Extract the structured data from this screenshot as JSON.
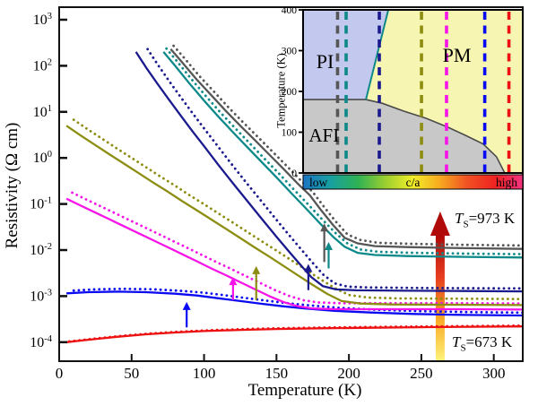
{
  "colors": {
    "background": "#ffffff",
    "axis": "#111111",
    "pi_fill": "#c3c9ee",
    "pm_fill": "#f6f6b2",
    "afi_fill": "#c8c8c8",
    "afi_boundary": "#4a4a4a",
    "pi_pm_boundary": "#0e8989",
    "gradient_arrow_stops": [
      "#fdf279",
      "#f9a825",
      "#e63c1e",
      "#ae0909"
    ]
  },
  "labels": {
    "ylabel": "Resistivity (Ω cm)",
    "xlabel": "Temperature (K)",
    "inset_ylabel": "Temperature (K)"
  },
  "annotations": {
    "high": {
      "symbol": "T",
      "sub": "S",
      "rest": "=973 K"
    },
    "low": {
      "symbol": "T",
      "sub": "S",
      "rest": "=673 K"
    }
  },
  "chart_data": {
    "type": "line",
    "title": "",
    "xlabel": "Temperature (K)",
    "ylabel": "Resistivity (Ω cm)",
    "xlim": [
      0,
      320
    ],
    "x_ticks": [
      0,
      50,
      100,
      150,
      200,
      250,
      300
    ],
    "y_scale": "log",
    "y_tick_exponents": [
      3,
      2,
      1,
      0,
      -1,
      -2,
      -3,
      -4
    ],
    "ylim_log": [
      -4.4,
      3.27
    ],
    "grid": false,
    "legend": "none",
    "note": "Each sample has a solid curve and a dotted twin slightly shifted (dT in K, factor in rho). Transition arrows mark metal-insulator transition temperatures.",
    "series": [
      {
        "name": "red-highest-ca",
        "color": "#ee1111",
        "dotted_dT": 2,
        "dotted_factor": 1.04,
        "arrow_T": null,
        "points": [
          [
            5,
            0.0001
          ],
          [
            20,
            0.000113
          ],
          [
            40,
            0.000131
          ],
          [
            60,
            0.000148
          ],
          [
            80,
            0.000162
          ],
          [
            100,
            0.000174
          ],
          [
            125,
            0.000185
          ],
          [
            150,
            0.000193
          ],
          [
            180,
            0.0002
          ],
          [
            215,
            0.000206
          ],
          [
            255,
            0.000212
          ],
          [
            320,
            0.00022
          ]
        ]
      },
      {
        "name": "blue-sample",
        "color": "#0a0af2",
        "dotted_dT": 5,
        "dotted_factor": 1.15,
        "arrow_T": 88,
        "arrow_rho": [
          0.00021,
          0.00075
        ],
        "points": [
          [
            5,
            0.00115
          ],
          [
            20,
            0.00122
          ],
          [
            40,
            0.00125
          ],
          [
            60,
            0.00122
          ],
          [
            80,
            0.00113
          ],
          [
            95,
            0.00103
          ],
          [
            110,
            0.0009
          ],
          [
            125,
            0.00078
          ],
          [
            140,
            0.00068
          ],
          [
            155,
            0.0006
          ],
          [
            170,
            0.00054
          ],
          [
            190,
            0.00048
          ],
          [
            215,
            0.00044
          ],
          [
            245,
            0.00041
          ],
          [
            280,
            0.00039
          ],
          [
            320,
            0.00038
          ]
        ]
      },
      {
        "name": "magenta-sample",
        "color": "#f714e8",
        "dotted_dT": 4,
        "dotted_factor": 1.35,
        "arrow_T": 120,
        "arrow_rho": [
          0.00082,
          0.0026
        ],
        "points": [
          [
            5,
            0.13
          ],
          [
            15,
            0.092
          ],
          [
            25,
            0.065
          ],
          [
            35,
            0.046
          ],
          [
            45,
            0.0325
          ],
          [
            55,
            0.023
          ],
          [
            65,
            0.0163
          ],
          [
            75,
            0.0115
          ],
          [
            85,
            0.0081
          ],
          [
            95,
            0.0057
          ],
          [
            105,
            0.004
          ],
          [
            115,
            0.00285
          ],
          [
            125,
            0.002
          ],
          [
            135,
            0.00142
          ],
          [
            145,
            0.001
          ],
          [
            155,
            0.00074
          ],
          [
            165,
            0.0006
          ],
          [
            175,
            0.00054
          ],
          [
            190,
            0.00052
          ],
          [
            220,
            0.00052
          ],
          [
            270,
            0.00052
          ],
          [
            320,
            0.00051
          ]
        ]
      },
      {
        "name": "olive-sample",
        "color": "#8d8d12",
        "dotted_dT": 5,
        "dotted_factor": 1.35,
        "arrow_T": 136,
        "arrow_rho": [
          0.00082,
          0.0045
        ],
        "points": [
          [
            5,
            5.0
          ],
          [
            15,
            3.05
          ],
          [
            25,
            1.9
          ],
          [
            35,
            1.18
          ],
          [
            45,
            0.74
          ],
          [
            55,
            0.465
          ],
          [
            65,
            0.29
          ],
          [
            75,
            0.185
          ],
          [
            85,
            0.115
          ],
          [
            95,
            0.073
          ],
          [
            105,
            0.046
          ],
          [
            115,
            0.029
          ],
          [
            125,
            0.0182
          ],
          [
            135,
            0.0114
          ],
          [
            145,
            0.0072
          ],
          [
            155,
            0.0045
          ],
          [
            165,
            0.0028
          ],
          [
            175,
            0.00175
          ],
          [
            185,
            0.00112
          ],
          [
            195,
            0.00078
          ],
          [
            208,
            0.00069
          ],
          [
            230,
            0.00066
          ],
          [
            275,
            0.00065
          ],
          [
            320,
            0.00064
          ]
        ]
      },
      {
        "name": "navy-sample",
        "color": "#1a1a8e",
        "dotted_dT": 8,
        "dotted_factor": 1.15,
        "arrow_T": 172,
        "arrow_rho": [
          0.00135,
          0.005
        ],
        "points": [
          [
            53,
            200
          ],
          [
            60,
            92
          ],
          [
            68,
            40
          ],
          [
            76,
            18
          ],
          [
            84,
            8.2
          ],
          [
            92,
            3.8
          ],
          [
            100,
            1.8
          ],
          [
            110,
            0.7
          ],
          [
            120,
            0.28
          ],
          [
            130,
            0.115
          ],
          [
            140,
            0.047
          ],
          [
            150,
            0.0195
          ],
          [
            158,
            0.0098
          ],
          [
            166,
            0.005
          ],
          [
            174,
            0.0026
          ],
          [
            182,
            0.00165
          ],
          [
            191,
            0.0014
          ],
          [
            205,
            0.00134
          ],
          [
            240,
            0.00131
          ],
          [
            280,
            0.00129
          ],
          [
            320,
            0.00127
          ]
        ]
      },
      {
        "name": "teal-sample",
        "color": "#0e8989",
        "dotted_dT": 2,
        "dotted_factor": 1.18,
        "arrow_T": 186,
        "arrow_rho": [
          0.004,
          0.015
        ],
        "points": [
          [
            72,
            200
          ],
          [
            80,
            100
          ],
          [
            90,
            41
          ],
          [
            100,
            17.5
          ],
          [
            110,
            7.8
          ],
          [
            120,
            3.6
          ],
          [
            130,
            1.7
          ],
          [
            140,
            0.8
          ],
          [
            150,
            0.38
          ],
          [
            160,
            0.175
          ],
          [
            170,
            0.082
          ],
          [
            180,
            0.038
          ],
          [
            189,
            0.0195
          ],
          [
            197,
            0.0118
          ],
          [
            206,
            0.0087
          ],
          [
            218,
            0.0078
          ],
          [
            240,
            0.0074
          ],
          [
            280,
            0.0071
          ],
          [
            320,
            0.0069
          ]
        ]
      },
      {
        "name": "gray-lowest-ca",
        "color": "#565656",
        "dotted_dT": 2,
        "dotted_factor": 1.18,
        "arrow_T": 183,
        "arrow_rho": [
          0.0055,
          0.038
        ],
        "points": [
          [
            77,
            230
          ],
          [
            85,
            118
          ],
          [
            95,
            50
          ],
          [
            105,
            23
          ],
          [
            115,
            10.5
          ],
          [
            125,
            5.0
          ],
          [
            135,
            2.45
          ],
          [
            145,
            1.18
          ],
          [
            155,
            0.57
          ],
          [
            165,
            0.27
          ],
          [
            173,
            0.155
          ],
          [
            181,
            0.072
          ],
          [
            189,
            0.035
          ],
          [
            197,
            0.0185
          ],
          [
            206,
            0.014
          ],
          [
            218,
            0.0122
          ],
          [
            240,
            0.0116
          ],
          [
            280,
            0.011
          ],
          [
            320,
            0.0106
          ]
        ]
      }
    ],
    "gradient_arrow": {
      "T": 263,
      "tip_label": "973 K",
      "tail_label": "673 K"
    },
    "inset": {
      "type": "phase-diagram",
      "ylabel": "Temperature (K)",
      "y_ticks": [
        0,
        100,
        200,
        300,
        400
      ],
      "ylim": [
        0,
        400
      ],
      "xlabel_bar": {
        "left": "low",
        "center": "c/a",
        "right": "high"
      },
      "regions": {
        "pi": "PI",
        "pm": "PM",
        "afi": "AFI"
      },
      "pi_polygon_fracK": [
        [
          0,
          400
        ],
        [
          0.388,
          400
        ],
        [
          0.286,
          180
        ],
        [
          0,
          180
        ]
      ],
      "afi_boundary_fracK": [
        [
          0,
          180
        ],
        [
          0.286,
          180
        ],
        [
          0.36,
          171
        ],
        [
          0.457,
          152
        ],
        [
          0.56,
          134
        ],
        [
          0.66,
          112
        ],
        [
          0.74,
          92
        ],
        [
          0.82,
          71
        ],
        [
          0.88,
          40
        ],
        [
          0.918,
          0
        ]
      ],
      "sample_lines_frac": [
        {
          "series": "gray-lowest-ca",
          "frac": 0.157
        },
        {
          "series": "teal-sample",
          "frac": 0.196
        },
        {
          "series": "navy-sample",
          "frac": 0.347
        },
        {
          "series": "olive-sample",
          "frac": 0.539
        },
        {
          "series": "magenta-sample",
          "frac": 0.653
        },
        {
          "series": "blue-sample",
          "frac": 0.827
        },
        {
          "series": "red-highest-ca",
          "frac": 0.937
        }
      ],
      "colorbar_stops": [
        "#1c74c4",
        "#18a0a0",
        "#2eb254",
        "#9ccf2f",
        "#f2ee2a",
        "#f7a81f",
        "#f05023",
        "#ee2222",
        "#f23380"
      ]
    }
  }
}
